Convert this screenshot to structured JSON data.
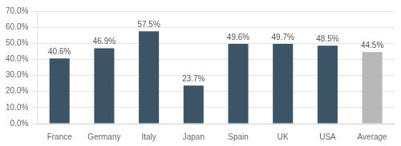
{
  "chart_data": {
    "type": "bar",
    "categories": [
      "France",
      "Germany",
      "Italy",
      "Japan",
      "Spain",
      "UK",
      "USA",
      "Average"
    ],
    "values": [
      40.6,
      46.9,
      57.5,
      23.7,
      49.6,
      49.7,
      48.5,
      44.5
    ],
    "value_labels": [
      "40.6%",
      "46.9%",
      "57.5%",
      "23.7%",
      "49.6%",
      "49.7%",
      "48.5%",
      "44.5%"
    ],
    "data_labels": true,
    "colors": [
      "#3D5466",
      "#3D5466",
      "#3D5466",
      "#3D5466",
      "#3D5466",
      "#3D5466",
      "#3D5466",
      "#B8B8B8"
    ],
    "ylim": [
      0,
      70
    ],
    "yticks": [
      {
        "value": 0,
        "label": "0.0%"
      },
      {
        "value": 10,
        "label": "10.0%"
      },
      {
        "value": 20,
        "label": "20.0%"
      },
      {
        "value": 30,
        "label": "30.0%"
      },
      {
        "value": 40,
        "label": "40.0%"
      },
      {
        "value": 50,
        "label": "50.0%"
      },
      {
        "value": 60,
        "label": "60.0%"
      },
      {
        "value": 70,
        "label": "70.0%"
      }
    ],
    "grid": true
  }
}
